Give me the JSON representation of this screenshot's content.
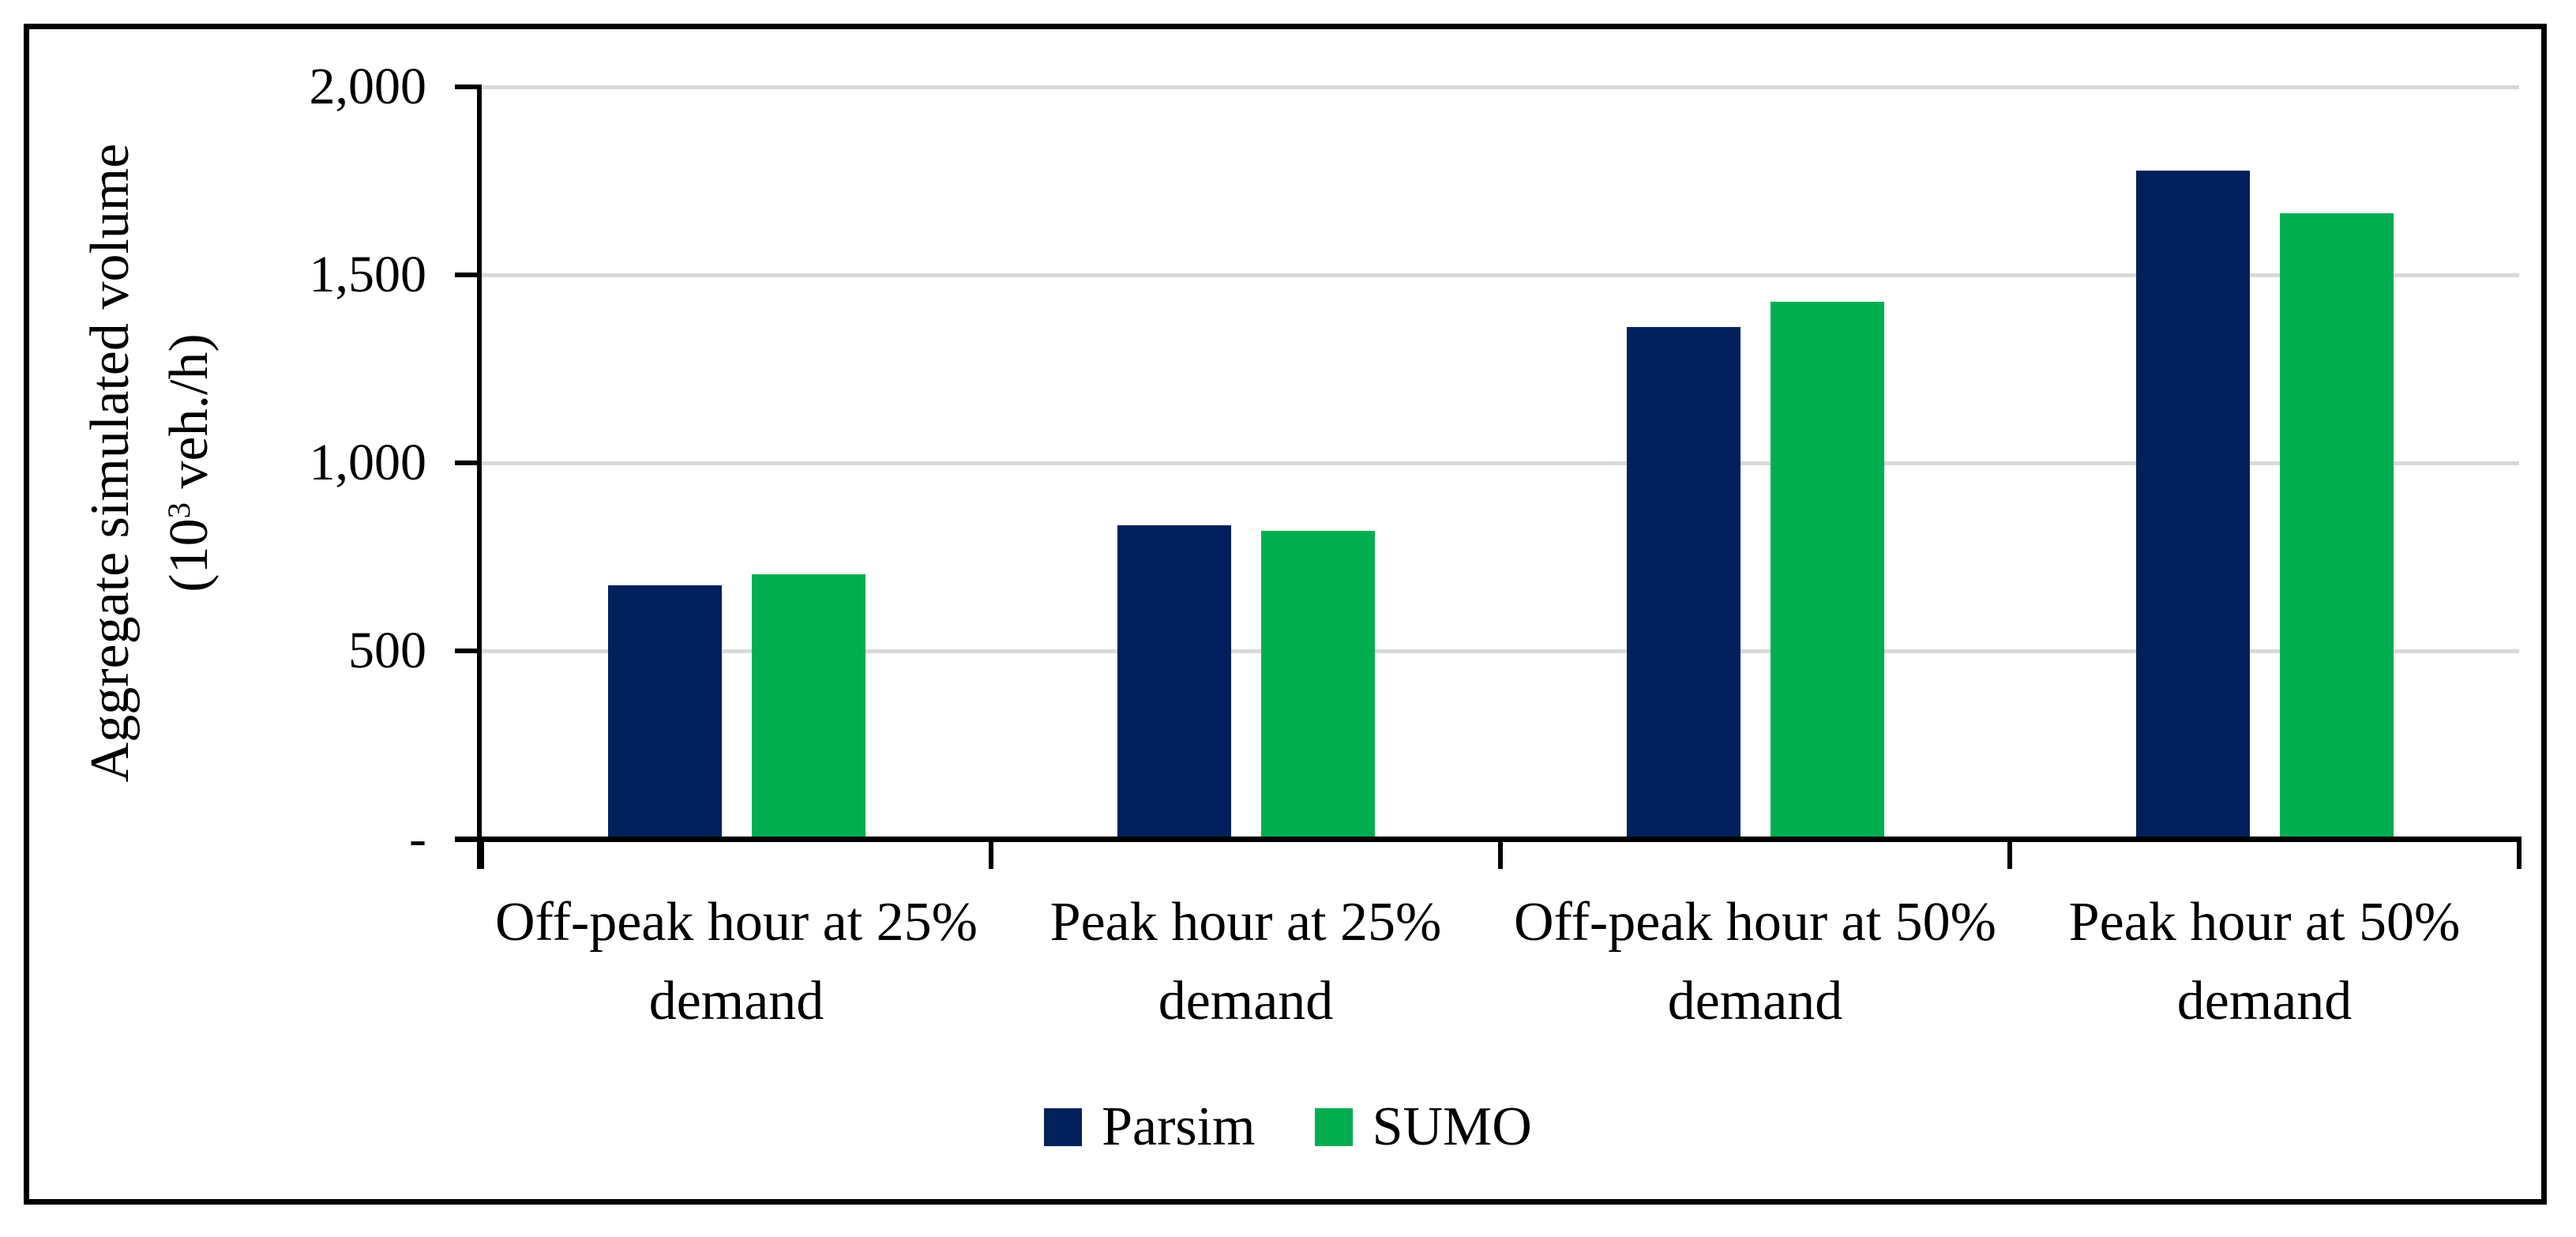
{
  "figure": {
    "background": "#FFFFFF",
    "border_color": "#000000"
  },
  "chart_data": {
    "type": "bar",
    "title": "",
    "categories": [
      "Off-peak hour at 25% demand",
      "Peak hour at 25% demand",
      "Off-peak hour at 50% demand",
      "Peak hour at 50% demand"
    ],
    "series": [
      {
        "name": "Parsim",
        "color": "#02215C",
        "values": [
          675,
          834,
          1362,
          1778
        ]
      },
      {
        "name": "SUMO",
        "color": "#00AE50",
        "values": [
          704,
          820,
          1428,
          1663
        ]
      }
    ],
    "ylabel_line1": "Aggregate simulated volume",
    "ylabel_line2_prefix": "(10",
    "ylabel_line2_sup": "3",
    "ylabel_line2_suffix": " veh./h)",
    "ylabel_plain": "Aggregate simulated volume (10^3 veh./h)",
    "xlabel": "",
    "ylim": [
      0,
      2000
    ],
    "yticks": [
      {
        "value": 0,
        "label": "-"
      },
      {
        "value": 500,
        "label": "500"
      },
      {
        "value": 1000,
        "label": "1,000"
      },
      {
        "value": 1500,
        "label": "1,500"
      },
      {
        "value": 2000,
        "label": "2,000"
      }
    ],
    "grid": "horizontal",
    "gridline_color": "#D9D9D9",
    "axis_color": "#000000",
    "legend_position": "bottom"
  }
}
